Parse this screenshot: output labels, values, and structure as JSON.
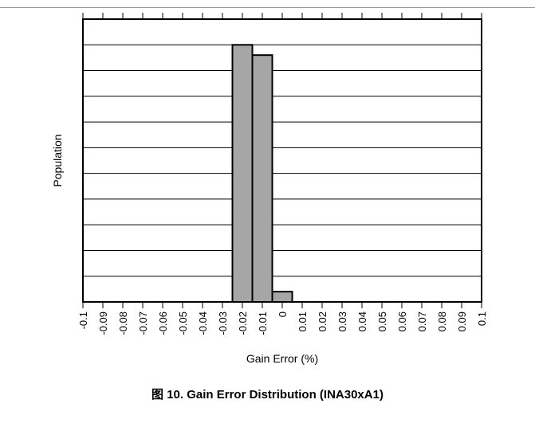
{
  "caption": "图 10. Gain Error Distribution (INA30xA1)",
  "colors": {
    "bar_fill": "#a6a6a6",
    "bar_stroke": "#000000",
    "grid": "#000000",
    "frame": "#000000"
  },
  "chart_data": {
    "type": "bar",
    "title": "",
    "xlabel": "Gain Error (%)",
    "ylabel": "Population",
    "x_tick_labels": [
      "-0.1",
      "-0.09",
      "-0.08",
      "-0.07",
      "-0.06",
      "-0.05",
      "-0.04",
      "-0.03",
      "-0.02",
      "-0.01",
      "0",
      "0.01",
      "0.02",
      "0.03",
      "0.04",
      "0.05",
      "0.06",
      "0.07",
      "0.08",
      "0.09",
      "0.1"
    ],
    "xlim": [
      -0.1,
      0.1
    ],
    "bin_width": 0.01,
    "bins": [
      {
        "x0": -0.025,
        "x1": -0.015,
        "value": 100
      },
      {
        "x0": -0.015,
        "x1": -0.005,
        "value": 96
      },
      {
        "x0": -0.005,
        "x1": 0.005,
        "value": 4
      }
    ],
    "ylim": [
      0,
      110
    ],
    "y_gridlines": 11,
    "y_tick_labels_shown": false,
    "grid": true,
    "legend": "none"
  }
}
